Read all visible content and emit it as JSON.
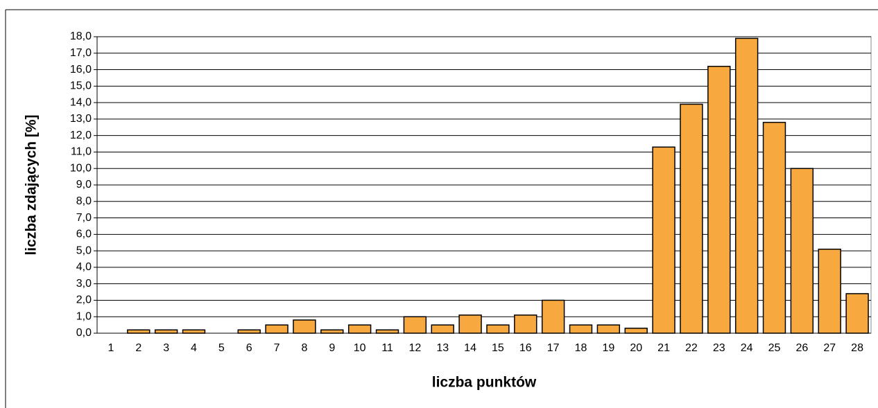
{
  "chart_data": {
    "type": "bar",
    "x_label": "liczba punktów",
    "y_label": "liczba zdających [%]",
    "categories": [
      "1",
      "2",
      "3",
      "4",
      "5",
      "6",
      "7",
      "8",
      "9",
      "10",
      "11",
      "12",
      "13",
      "14",
      "15",
      "16",
      "17",
      "18",
      "19",
      "20",
      "21",
      "22",
      "23",
      "24",
      "25",
      "26",
      "27",
      "28"
    ],
    "values": [
      0,
      0.2,
      0.2,
      0.2,
      0,
      0.2,
      0.5,
      0.8,
      0.2,
      0.5,
      0.2,
      1.0,
      0.5,
      1.1,
      0.5,
      1.1,
      2.0,
      0.5,
      0.5,
      0.3,
      11.3,
      13.9,
      16.2,
      17.9,
      12.8,
      10.0,
      5.1,
      2.4
    ],
    "color": "#f7a93f",
    "ylim": [
      0,
      18
    ],
    "yticks": [
      {
        "value": 0,
        "label": "0,0"
      },
      {
        "value": 1,
        "label": "1,0"
      },
      {
        "value": 2,
        "label": "2,0"
      },
      {
        "value": 3,
        "label": "3,0"
      },
      {
        "value": 4,
        "label": "4,0"
      },
      {
        "value": 5,
        "label": "5,0"
      },
      {
        "value": 6,
        "label": "6,0"
      },
      {
        "value": 7,
        "label": "7,0"
      },
      {
        "value": 8,
        "label": "8,0"
      },
      {
        "value": 9,
        "label": "9,0"
      },
      {
        "value": 10,
        "label": "10,0"
      },
      {
        "value": 11,
        "label": "11,0"
      },
      {
        "value": 12,
        "label": "12,0"
      },
      {
        "value": 13,
        "label": "13,0"
      },
      {
        "value": 14,
        "label": "14,0"
      },
      {
        "value": 15,
        "label": "15,0"
      },
      {
        "value": 16,
        "label": "16,0"
      },
      {
        "value": 17,
        "label": "17,0"
      },
      {
        "value": 18,
        "label": "18,0"
      }
    ],
    "grid": true
  }
}
